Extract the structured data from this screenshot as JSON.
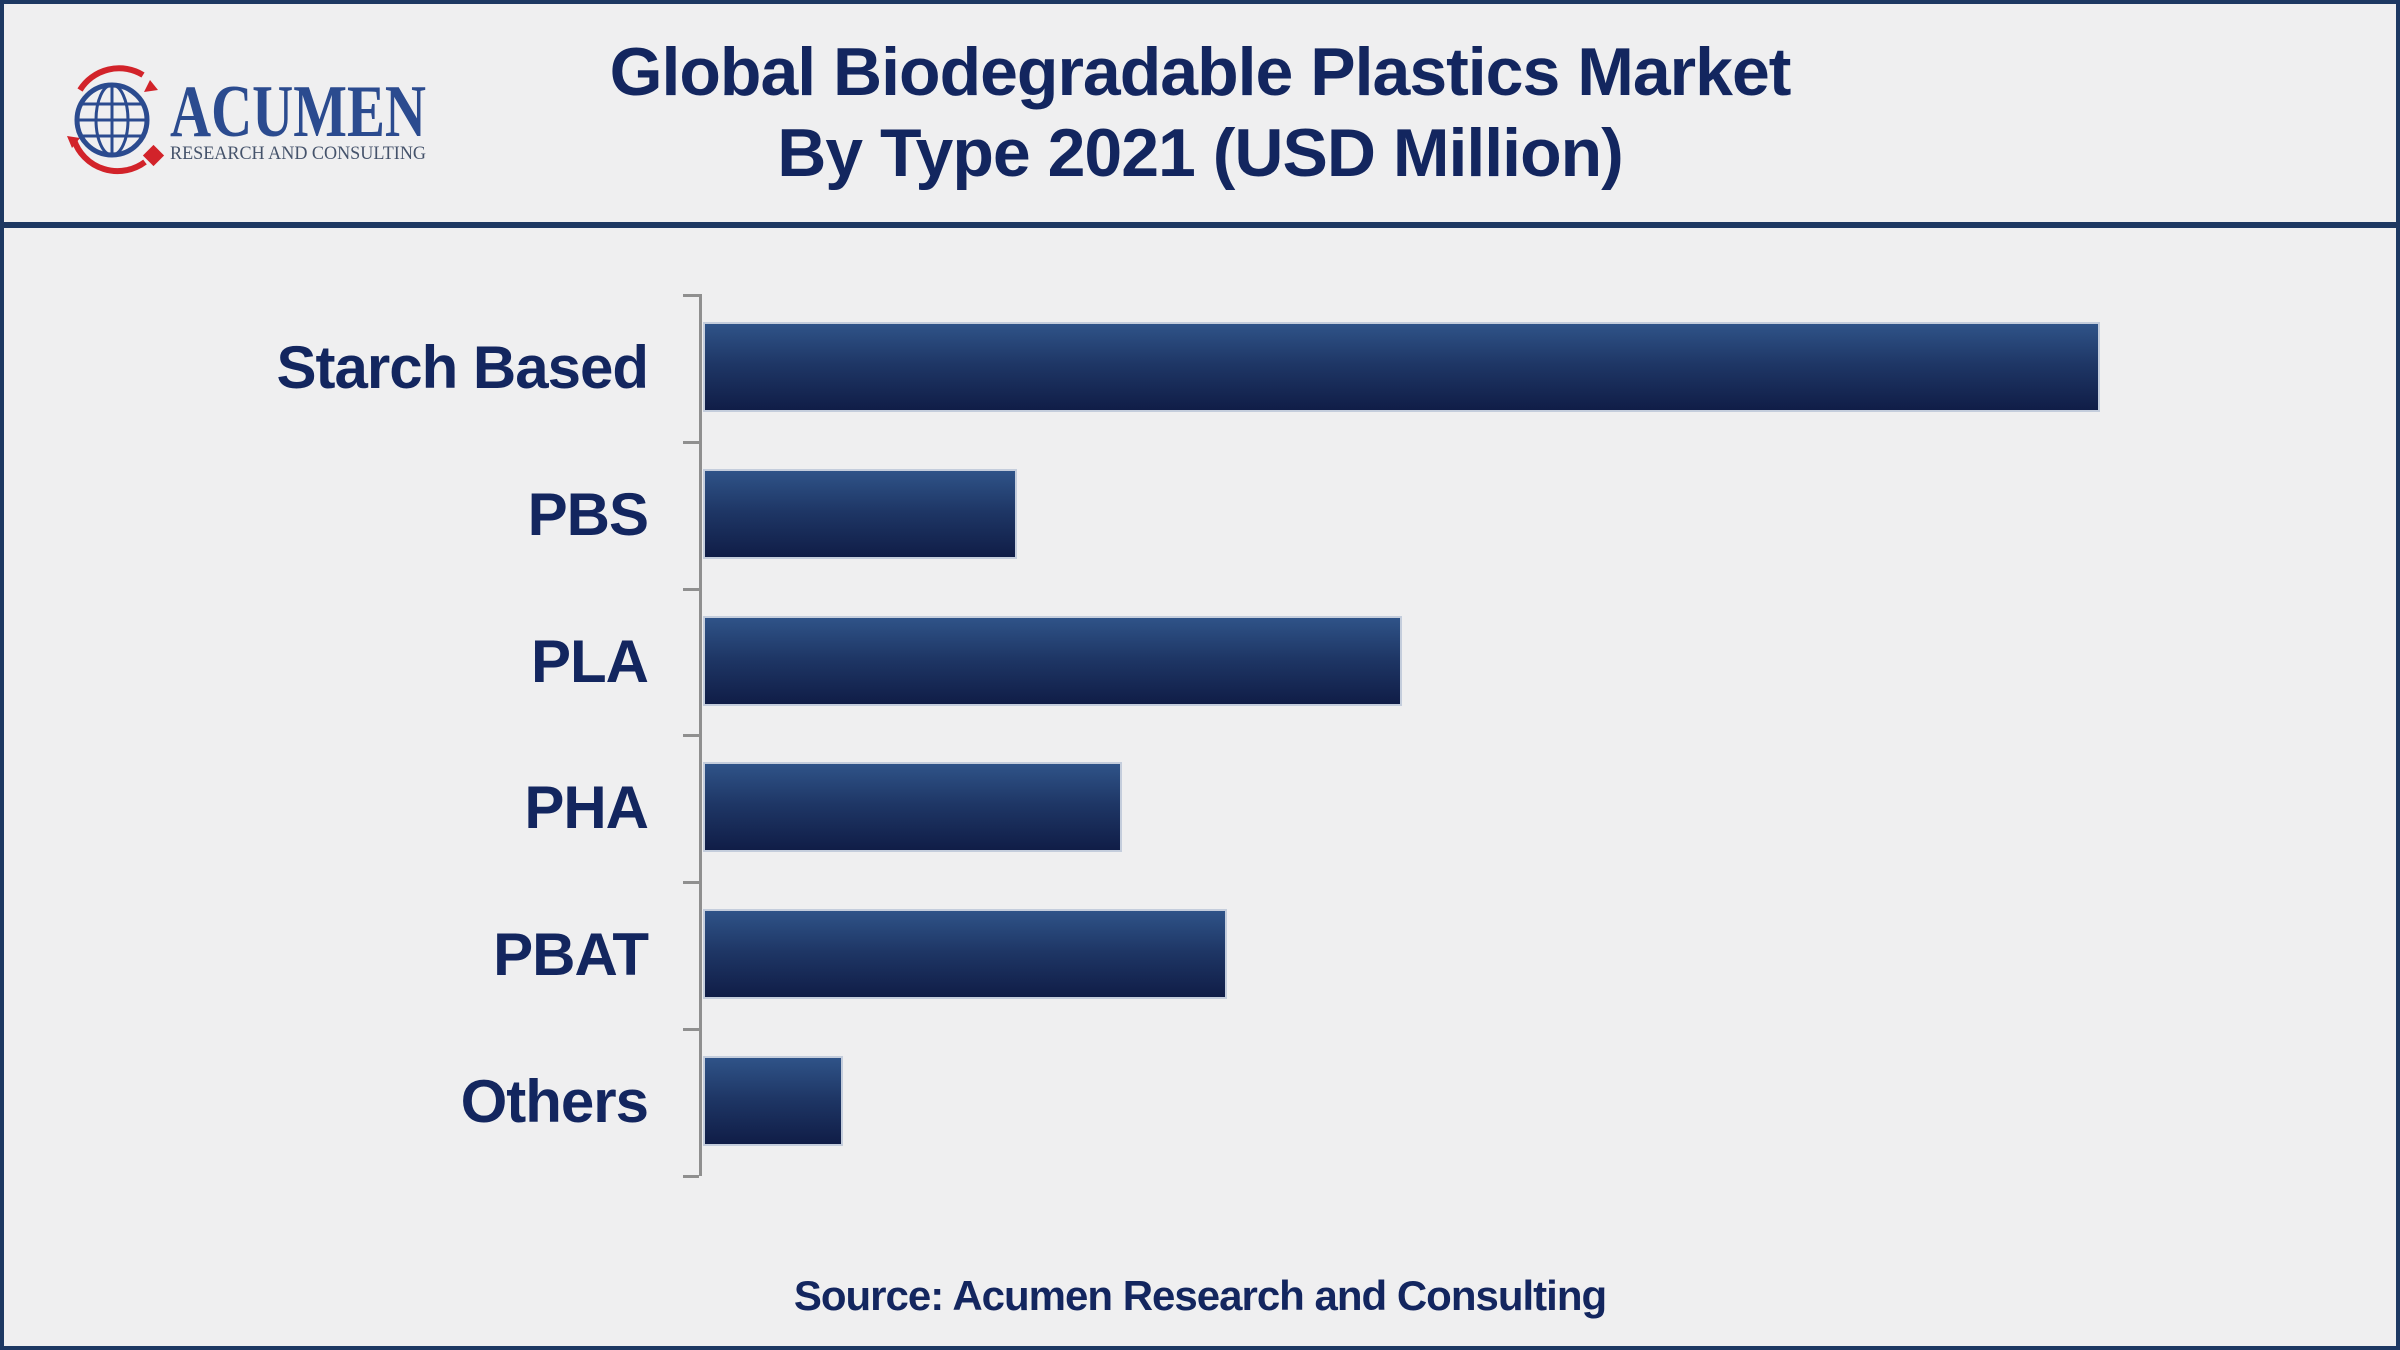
{
  "header": {
    "logo": {
      "brand": "ACUMEN",
      "tagline": "RESEARCH AND CONSULTING"
    },
    "title_line1": "Global Biodegradable Plastics Market",
    "title_line2": "By Type 2021 (USD Million)"
  },
  "footer": {
    "source_text": "Source: Acumen Research and Consulting"
  },
  "colors": {
    "background": "#efeff0",
    "border_navy": "#1d3862",
    "navy_text": "#13265f",
    "axis_gray": "#8f8f8f",
    "bar_gradient_top": "#2f5388",
    "bar_gradient_bottom": "#101d47",
    "bar_outline": "#c4cddc",
    "logo_blue": "#2b4b8f",
    "logo_red": "#d2232a"
  },
  "chart_data": {
    "type": "bar",
    "orientation": "horizontal",
    "title": "Global Biodegradable Plastics Market By Type 2021 (USD Million)",
    "unit": "USD Million",
    "year": "2021",
    "categories": [
      "Starch Based",
      "PBS",
      "PLA",
      "PHA",
      "PBAT",
      "Others"
    ],
    "values_percent_of_max": [
      100,
      22.5,
      50,
      30,
      37.5,
      10
    ],
    "xlabel": "",
    "ylabel": "",
    "value_axis_tick_labels": "none shown",
    "data_labels": "none shown",
    "legend": "none",
    "gridlines": false,
    "note": "No numeric axis or data labels are rendered; values are bar lengths measured relative to the longest bar (Starch Based = 100)."
  }
}
